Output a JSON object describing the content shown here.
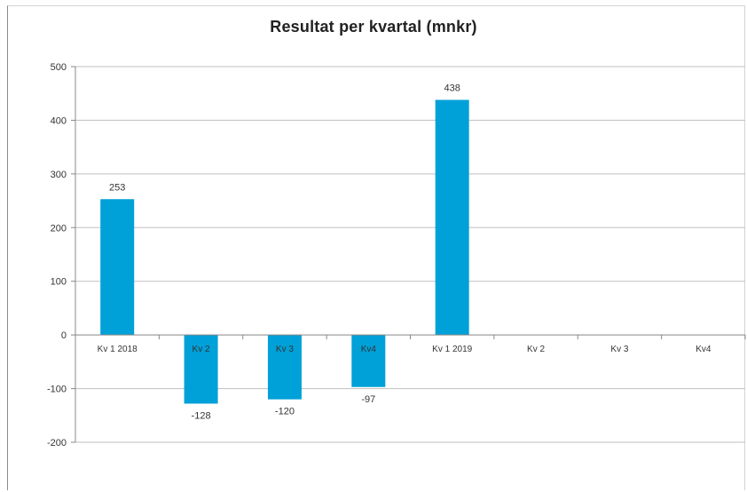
{
  "chart_data": {
    "type": "bar",
    "title": "Resultat per kvartal (mnkr)",
    "categories": [
      "Kv 1 2018",
      "Kv 2",
      "Kv 3",
      "Kv4",
      "Kv 1 2019",
      "Kv 2",
      "Kv 3",
      "Kv4"
    ],
    "values": [
      253,
      -128,
      -120,
      -97,
      438,
      null,
      null,
      null
    ],
    "data_labels": [
      "253",
      "-128",
      "-120",
      "-97",
      "438",
      "",
      "",
      ""
    ],
    "ylim": [
      -200,
      500
    ],
    "yticks": [
      500,
      400,
      300,
      200,
      100,
      0,
      -100,
      -200
    ],
    "xlabel": "",
    "ylabel": "",
    "grid": true,
    "legend": "none",
    "bar_color": "#00a0d8",
    "grid_color": "#bfbfbf"
  }
}
